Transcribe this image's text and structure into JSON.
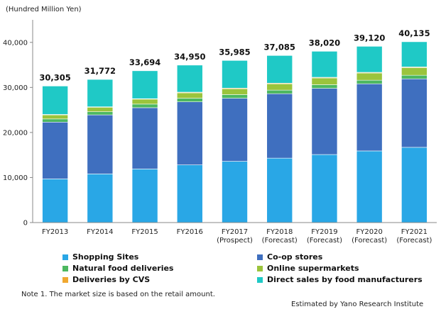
{
  "chart_data": {
    "type": "bar",
    "stacked": true,
    "unit_label": "(Hundred Million Yen)",
    "categories": [
      "FY2013",
      "FY2014",
      "FY2015",
      "FY2016",
      "FY2017",
      "FY2018",
      "FY2019",
      "FY2020",
      "FY2021"
    ],
    "category_sublabels": [
      "",
      "",
      "",
      "",
      "(Prospect)",
      "(Forecast)",
      "(Forecast)",
      "(Forecast)",
      "(Forecast)"
    ],
    "totals": [
      30305,
      31772,
      33694,
      34950,
      35985,
      37085,
      38020,
      39120,
      40135
    ],
    "total_labels": [
      "30,305",
      "31,772",
      "33,694",
      "34,950",
      "35,985",
      "37,085",
      "38,020",
      "39,120",
      "40,135"
    ],
    "series": [
      {
        "name": "Shopping Sites",
        "color": "#29a7e6",
        "values": [
          9700,
          10800,
          11900,
          12800,
          13600,
          14300,
          15100,
          15900,
          16700
        ]
      },
      {
        "name": "Co-op stores",
        "color": "#3f6fbf",
        "values": [
          12600,
          13100,
          13600,
          14000,
          14000,
          14300,
          14700,
          14900,
          15200
        ]
      },
      {
        "name": "Natural food deliveries",
        "color": "#4cb860",
        "values": [
          700,
          700,
          800,
          800,
          800,
          800,
          800,
          800,
          800
        ]
      },
      {
        "name": "Online supermarkets",
        "color": "#9bc43c",
        "values": [
          900,
          1000,
          1100,
          1200,
          1300,
          1400,
          1500,
          1600,
          1700
        ]
      },
      {
        "name": "Deliveries by CVS",
        "color": "#f0a830",
        "values": [
          100,
          100,
          100,
          150,
          150,
          150,
          150,
          150,
          150
        ]
      },
      {
        "name": "Direct sales by food manufacturers",
        "color": "#1fc9c6",
        "values": [
          6305,
          6072,
          6194,
          6000,
          6135,
          6135,
          5770,
          5770,
          5585
        ]
      }
    ],
    "ylim": [
      0,
      45000
    ],
    "yticks": [
      0,
      10000,
      20000,
      30000,
      40000
    ],
    "ytick_labels": [
      "0",
      "10,000",
      "20,000",
      "30,000",
      "40,000"
    ]
  },
  "legend_order": [
    0,
    1,
    2,
    3,
    4,
    5
  ],
  "footnote": "Note 1. The market size is based on the retail amount.",
  "source": "Estimated by Yano Research Institute"
}
